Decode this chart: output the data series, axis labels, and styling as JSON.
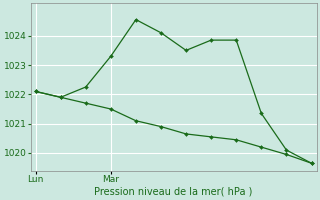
{
  "background_color": "#cce8e0",
  "grid_color": "#ffffff",
  "line_color": "#1a6b1a",
  "vline_color": "#aaaaaa",
  "xlabel": "Pression niveau de la mer( hPa )",
  "ylim": [
    1019.4,
    1025.1
  ],
  "yticks": [
    1020,
    1021,
    1022,
    1023,
    1024
  ],
  "xlim": [
    -0.2,
    11.2
  ],
  "x_tick_pos": [
    0,
    3
  ],
  "x_tick_labels": [
    "Lun",
    "Mar"
  ],
  "line1_x": [
    0,
    1,
    2,
    3,
    4,
    5,
    6,
    7,
    8,
    9,
    10,
    11
  ],
  "line1_y": [
    1022.1,
    1021.9,
    1022.25,
    1023.3,
    1024.55,
    1024.1,
    1023.5,
    1023.85,
    1023.85,
    1021.35,
    1020.1,
    1019.65
  ],
  "line2_x": [
    0,
    1,
    2,
    3,
    4,
    5,
    6,
    7,
    8,
    9,
    10,
    11
  ],
  "line2_y": [
    1022.1,
    1021.9,
    1021.7,
    1021.5,
    1021.1,
    1020.9,
    1020.65,
    1020.55,
    1020.45,
    1020.2,
    1019.95,
    1019.65
  ],
  "xlabel_fontsize": 7,
  "ytick_fontsize": 6.5,
  "xtick_fontsize": 6.5
}
